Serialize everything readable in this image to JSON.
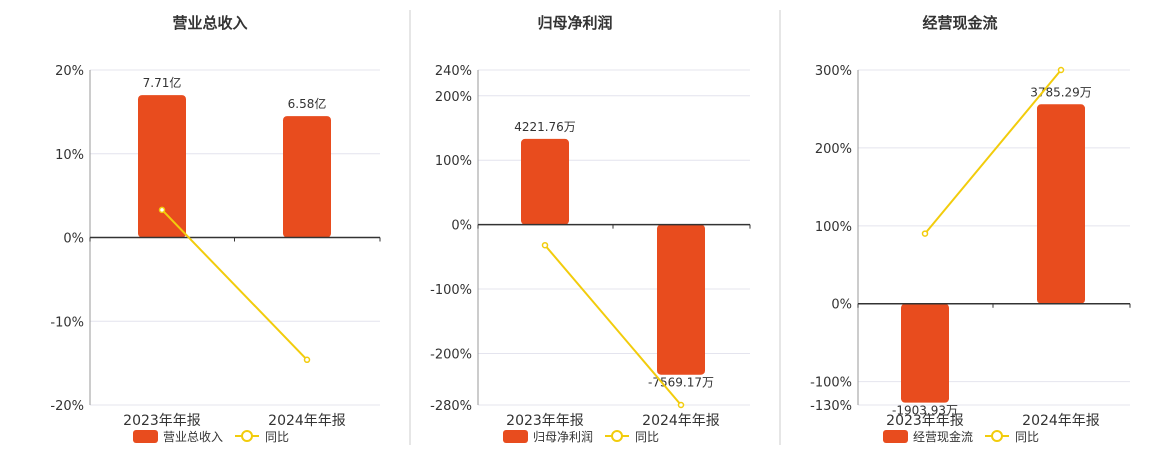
{
  "colors": {
    "bar": "#e84c1e",
    "line": "#f2cc0c",
    "axis": "#333333",
    "grid": "#e4e4ee",
    "divider": "#cccccc",
    "text": "#333333"
  },
  "legend": {
    "line_label": "同比"
  },
  "chart_data": [
    {
      "type": "bar",
      "title": "营业总收入",
      "categories": [
        "2023年年报",
        "2024年年报"
      ],
      "series": [
        {
          "name": "营业总收入",
          "kind": "bar",
          "labels": [
            "7.71亿",
            "6.58亿"
          ],
          "values": [
            17.0,
            14.5
          ]
        },
        {
          "name": "同比",
          "kind": "line",
          "values": [
            3.3,
            -14.6
          ]
        }
      ],
      "y_ticks": [
        20,
        10,
        0,
        -10,
        -20
      ],
      "y_tick_labels": [
        "20%",
        "10%",
        "0%",
        "-10%",
        "-20%"
      ],
      "ylim": [
        -20,
        20
      ],
      "grid": true,
      "legend_position": "bottom"
    },
    {
      "type": "bar",
      "title": "归母净利润",
      "categories": [
        "2023年年报",
        "2024年年报"
      ],
      "series": [
        {
          "name": "归母净利润",
          "kind": "bar",
          "labels": [
            "4221.76万",
            "-7569.17万"
          ],
          "values": [
            133,
            -233
          ]
        },
        {
          "name": "同比",
          "kind": "line",
          "values": [
            -32,
            -280
          ]
        }
      ],
      "y_ticks": [
        240,
        200,
        100,
        0,
        -100,
        -200,
        -280
      ],
      "y_tick_labels": [
        "240%",
        "200%",
        "100%",
        "0%",
        "-100%",
        "-200%",
        "-280%"
      ],
      "ylim": [
        -280,
        240
      ],
      "grid": true,
      "legend_position": "bottom"
    },
    {
      "type": "bar",
      "title": "经营现金流",
      "categories": [
        "2023年年报",
        "2024年年报"
      ],
      "series": [
        {
          "name": "经营现金流",
          "kind": "bar",
          "labels": [
            "-1903.93万",
            "3785.29万"
          ],
          "values": [
            -127,
            256
          ]
        },
        {
          "name": "同比",
          "kind": "line",
          "values": [
            90,
            300
          ]
        }
      ],
      "y_ticks": [
        300,
        200,
        100,
        0,
        -100,
        -130
      ],
      "y_tick_labels": [
        "300%",
        "200%",
        "100%",
        "0%",
        "-100%",
        "-130%"
      ],
      "ylim": [
        -130,
        300
      ],
      "grid": true,
      "legend_position": "bottom"
    }
  ]
}
